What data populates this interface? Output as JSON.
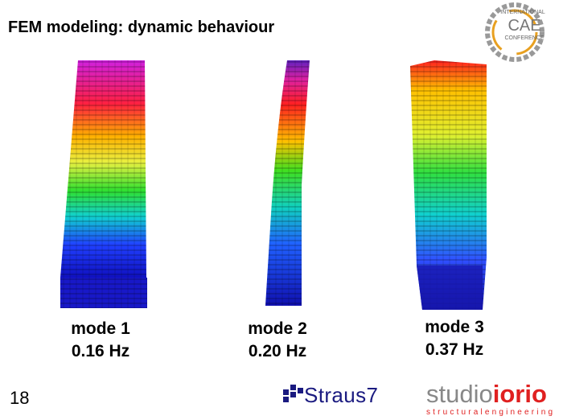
{
  "header": {
    "title": "FEM modeling: dynamic behaviour"
  },
  "logo": {
    "line1": "INTERNATIONAL",
    "line2": "CAE",
    "line3": "CONFERENCE"
  },
  "modes": [
    {
      "label": "mode 1",
      "frequency": "0.16 Hz"
    },
    {
      "label": "mode 2",
      "frequency": "0.20 Hz"
    },
    {
      "label": "mode 3",
      "frequency": "0.37 Hz"
    }
  ],
  "footer": {
    "page_number": "18",
    "software": "Straus7",
    "company_a": "studio",
    "company_b": "iorio",
    "company_tagline": "structuralengineering"
  }
}
